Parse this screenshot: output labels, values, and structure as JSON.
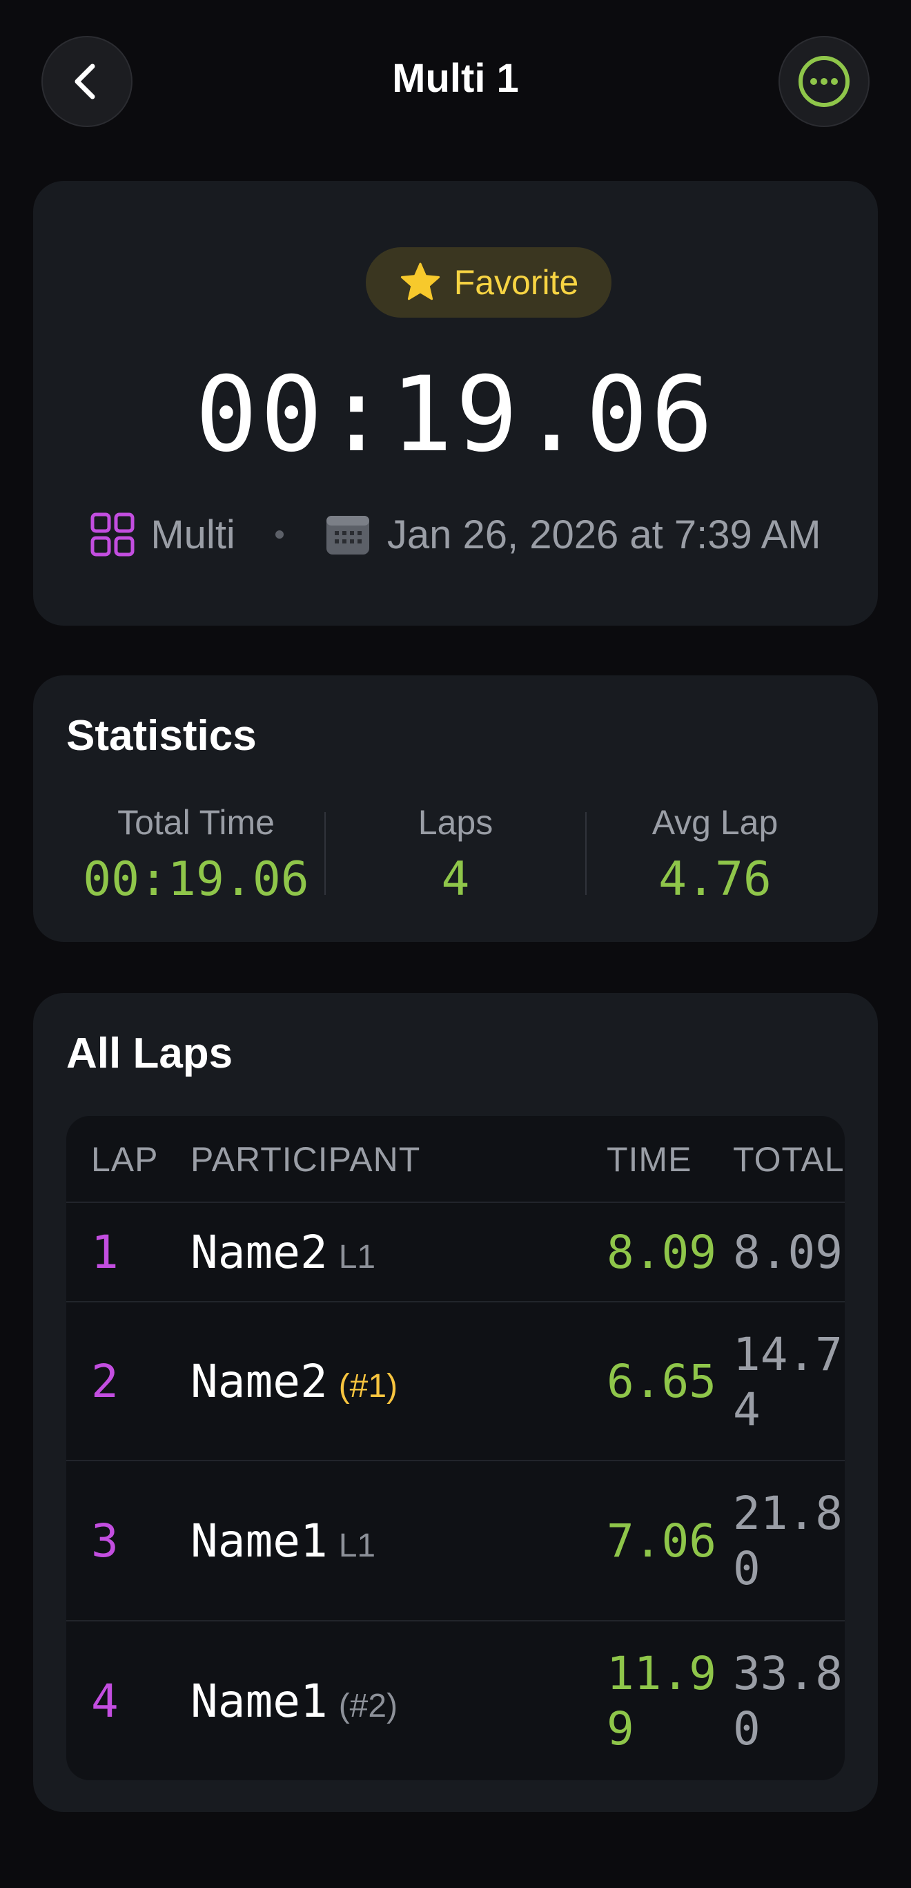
{
  "header": {
    "title": "Multi 1",
    "back_icon": "chevron-left-icon",
    "more_icon": "ellipsis-circle-icon"
  },
  "summary": {
    "favorite_label": "Favorite",
    "elapsed": "00:19.06",
    "mode": "Multi",
    "date": "Jan 26, 2026 at 7:39 AM"
  },
  "statistics": {
    "title": "Statistics",
    "items": [
      {
        "label": "Total Time",
        "value": "00:19.06"
      },
      {
        "label": "Laps",
        "value": "4"
      },
      {
        "label": "Avg Lap",
        "value": "4.76"
      }
    ]
  },
  "laps": {
    "title": "All Laps",
    "columns": {
      "lap": "LAP",
      "participant": "PARTICIPANT",
      "time": "TIME",
      "total": "TOTAL"
    },
    "rows": [
      {
        "lap": "1",
        "name": "Name2",
        "tag": "L1",
        "time": "8.09",
        "total": "8.09"
      },
      {
        "lap": "2",
        "name": "Name2",
        "tag": "(#1)",
        "time": "6.65",
        "total": "14.74"
      },
      {
        "lap": "3",
        "name": "Name1",
        "tag": "L1",
        "time": "7.06",
        "total": "21.80"
      },
      {
        "lap": "4",
        "name": "Name1",
        "tag": "(#2)",
        "time": "11.99",
        "total": "33.80"
      }
    ]
  },
  "colors": {
    "accent_green": "#8fc64a",
    "lap_purple": "#c34ee0",
    "favorite_yellow": "#f7d443"
  }
}
